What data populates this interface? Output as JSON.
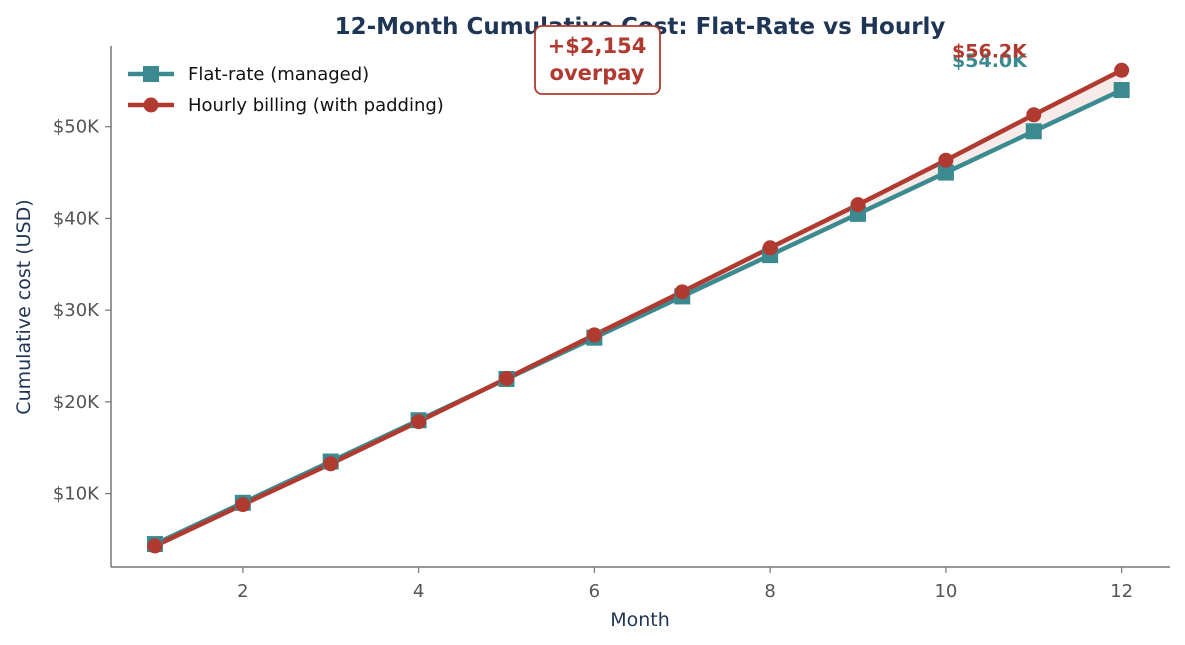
{
  "chart_data": {
    "type": "line",
    "title": "12-Month Cumulative Cost: Flat-Rate vs Hourly",
    "xlabel": "Month",
    "ylabel": "Cumulative cost (USD)",
    "xlim": [
      0.5,
      12.55
    ],
    "ylim": [
      2000,
      58800
    ],
    "xticks": [
      2,
      4,
      6,
      8,
      10,
      12
    ],
    "yticks": [
      10000,
      20000,
      30000,
      40000,
      50000
    ],
    "ytick_labels": [
      "$10K",
      "$20K",
      "$30K",
      "$40K",
      "$50K"
    ],
    "x": [
      1,
      2,
      3,
      4,
      5,
      6,
      7,
      8,
      9,
      10,
      11,
      12
    ],
    "grid": false,
    "legend_position": "top-left",
    "series": [
      {
        "name": "Flat-rate (managed)",
        "color": "#3a8a8f",
        "marker": "square",
        "values": [
          4500,
          9000,
          13500,
          18000,
          22500,
          27000,
          31500,
          36000,
          40500,
          45000,
          49500,
          54000
        ],
        "end_label": "$54.0K"
      },
      {
        "name": "Hourly billing (with padding)",
        "color": "#b03a30",
        "marker": "circle",
        "values": [
          4300,
          8800,
          13250,
          17850,
          22550,
          27300,
          32000,
          36800,
          41500,
          46350,
          51300,
          56154
        ],
        "end_label": "$56.2K"
      }
    ],
    "fill_between": {
      "color": "#b03a30",
      "opacity": 0.1
    },
    "annotation": {
      "lines": [
        "+$2,154",
        "overpay"
      ],
      "x": 6,
      "color": "#b03a30"
    }
  }
}
